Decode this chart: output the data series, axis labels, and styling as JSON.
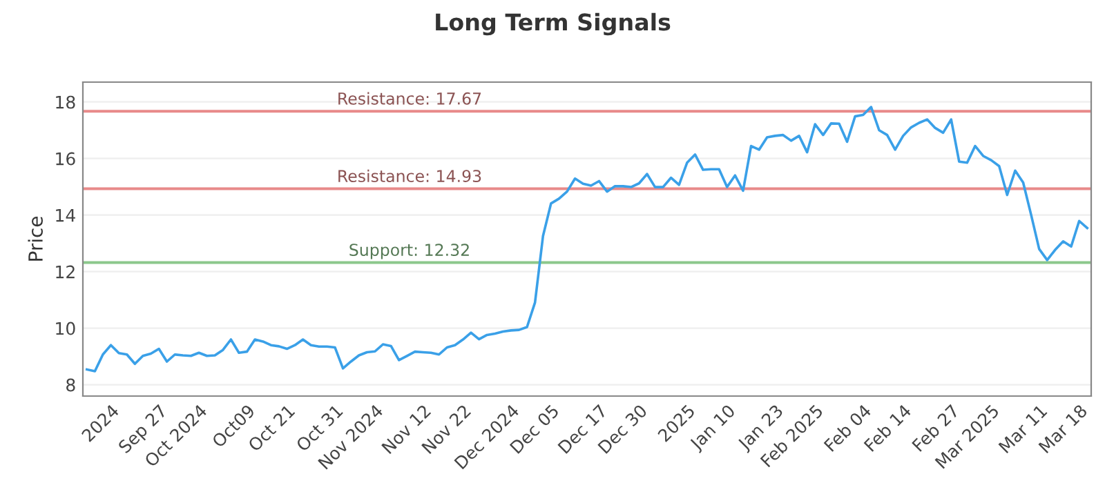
{
  "chart_data": {
    "type": "line",
    "title": "Long Term Signals",
    "ylabel": "Price",
    "categories": [
      null,
      null,
      null,
      "2024",
      null,
      null,
      null,
      null,
      null,
      "Sep 27",
      null,
      null,
      null,
      null,
      "Oct 2024",
      null,
      null,
      null,
      null,
      null,
      "Oct09",
      null,
      null,
      null,
      null,
      "Oct 21",
      null,
      null,
      null,
      null,
      null,
      "Oct 31",
      null,
      null,
      null,
      null,
      "Nov 2024",
      null,
      null,
      null,
      null,
      null,
      "Nov 12",
      null,
      null,
      null,
      null,
      "Nov 22",
      null,
      null,
      null,
      null,
      null,
      "Dec 2024",
      null,
      null,
      null,
      null,
      "Dec 05",
      null,
      null,
      null,
      null,
      null,
      "Dec 17",
      null,
      null,
      null,
      null,
      "Dec 30",
      null,
      null,
      null,
      null,
      null,
      "2025",
      null,
      null,
      null,
      null,
      "Jan 10",
      null,
      null,
      null,
      null,
      null,
      "Jan 23",
      null,
      null,
      null,
      null,
      "Feb 2025",
      null,
      null,
      null,
      null,
      null,
      "Feb 04",
      null,
      null,
      null,
      null,
      "Feb 14",
      null,
      null,
      null,
      null,
      null,
      "Feb 27",
      null,
      null,
      null,
      null,
      "Mar 2025",
      null,
      null,
      null,
      null,
      null,
      "Mar 11",
      null,
      null,
      null,
      null,
      "Mar 18",
      null
    ],
    "series": [
      {
        "color": "#3aa0e8",
        "values": [
          8.54,
          8.48,
          9.07,
          9.4,
          9.12,
          9.07,
          8.74,
          9.02,
          9.1,
          9.27,
          8.82,
          9.07,
          9.04,
          9.02,
          9.13,
          9.02,
          9.04,
          9.23,
          9.6,
          9.13,
          9.17,
          9.6,
          9.53,
          9.4,
          9.36,
          9.27,
          9.4,
          9.6,
          9.4,
          9.35,
          9.35,
          9.32,
          8.58,
          8.82,
          9.04,
          9.15,
          9.18,
          9.43,
          9.37,
          8.87,
          9.02,
          9.17,
          9.15,
          9.13,
          9.07,
          9.32,
          9.4,
          9.6,
          9.84,
          9.61,
          9.76,
          9.81,
          9.88,
          9.92,
          9.94,
          10.04,
          10.91,
          13.26,
          14.41,
          14.58,
          14.83,
          15.29,
          15.11,
          15.04,
          15.2,
          14.83,
          15.02,
          15.02,
          14.99,
          15.12,
          15.45,
          14.99,
          14.99,
          15.32,
          15.07,
          15.85,
          16.14,
          15.6,
          15.62,
          15.62,
          14.99,
          15.4,
          14.86,
          16.44,
          16.31,
          16.75,
          16.8,
          16.83,
          16.63,
          16.8,
          16.22,
          17.21,
          16.83,
          17.24,
          17.23,
          16.59,
          17.49,
          17.54,
          17.82,
          17.0,
          16.83,
          16.31,
          16.8,
          17.1,
          17.26,
          17.38,
          17.08,
          16.91,
          17.38,
          15.89,
          15.85,
          16.44,
          16.09,
          15.94,
          15.73,
          14.71,
          15.57,
          15.15,
          14.0,
          12.8,
          12.41,
          12.77,
          13.07,
          12.89,
          13.79,
          13.54
        ]
      }
    ],
    "ylim": [
      7.6,
      18.7
    ],
    "yticks": [
      8,
      10,
      12,
      14,
      16,
      18
    ],
    "grid": "y",
    "marker": "none",
    "line_style": "solid",
    "ref_lines": [
      {
        "axis": "y",
        "value": 17.67,
        "label": "Resistance: 17.67",
        "color": "#e88a8a"
      },
      {
        "axis": "y",
        "value": 14.93,
        "label": "Resistance: 14.93",
        "color": "#e88a8a"
      },
      {
        "axis": "y",
        "value": 12.32,
        "label": "Support: 12.32",
        "color": "#8cc88c"
      }
    ]
  }
}
